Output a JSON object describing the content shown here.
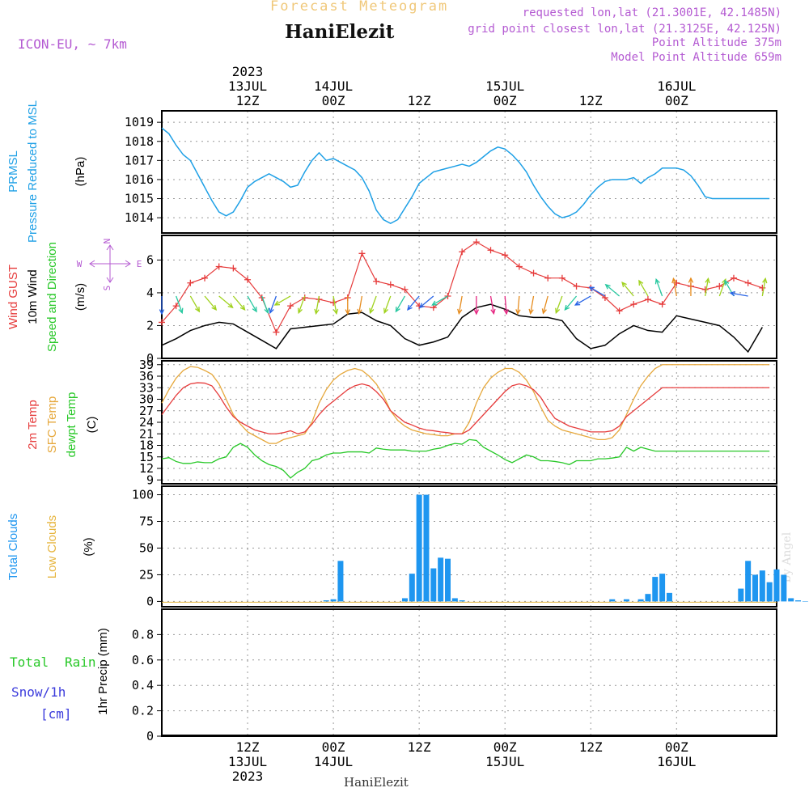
{
  "header": {
    "product_title": "Forecast Meteogram",
    "station": "HaniElezit",
    "model": "ICON-EU, ~ 7km",
    "requested": "requested lon,lat (21.3001E, 42.1485N)",
    "grid_point": "grid point closest lon,lat (21.3125E, 42.125N)",
    "point_altitude": "Point Altitude 375m",
    "model_altitude": "Model Point Altitude 659m",
    "footer_station": "HaniElezit",
    "watermark": "by Angel"
  },
  "time_axis": {
    "top_labels": [
      {
        "hour": 12,
        "lines": [
          "2023",
          "13JUL",
          "12Z"
        ]
      },
      {
        "hour": 24,
        "lines": [
          "14JUL",
          "00Z"
        ]
      },
      {
        "hour": 36,
        "lines": [
          "12Z"
        ]
      },
      {
        "hour": 48,
        "lines": [
          "15JUL",
          "00Z"
        ]
      },
      {
        "hour": 60,
        "lines": [
          "12Z"
        ]
      },
      {
        "hour": 72,
        "lines": [
          "16JUL",
          "00Z"
        ]
      }
    ],
    "bottom_labels": [
      {
        "hour": 12,
        "lines": [
          "12Z",
          "13JUL",
          "2023"
        ]
      },
      {
        "hour": 24,
        "lines": [
          "00Z",
          "14JUL"
        ]
      },
      {
        "hour": 36,
        "lines": [
          "12Z"
        ]
      },
      {
        "hour": 48,
        "lines": [
          "00Z",
          "15JUL"
        ]
      },
      {
        "hour": 60,
        "lines": [
          "12Z"
        ]
      },
      {
        "hour": 72,
        "lines": [
          "00Z",
          "16JUL"
        ]
      }
    ]
  },
  "panels": {
    "pressure": {
      "ylabel_lines": [
        "PRMSL",
        "Pressure Reduced to MSL"
      ],
      "unit": "(hPa)"
    },
    "wind": {
      "ylabel_lines": [
        "Wind GUST",
        "10m Wind",
        "Speed and Direction"
      ],
      "unit": "(m/s)",
      "compass": {
        "n": "N",
        "s": "S",
        "w": "W",
        "e": "E"
      }
    },
    "temp": {
      "ylabel_lines": [
        "2m Temp",
        "SFC Temp",
        "dewpt Temp"
      ],
      "unit": "(C)"
    },
    "clouds": {
      "ylabel_lines": [
        "Total Clouds",
        "Low Clouds"
      ],
      "unit": "(%)"
    },
    "precip": {
      "ylabel": "1hr Precip (mm)",
      "legend_total": "Total",
      "legend_rain": "Rain",
      "legend_snow": "Snow/1h",
      "legend_snow_unit": "[cm]"
    }
  },
  "colors": {
    "pressure": "#1ea0e6",
    "gust": "#e63c3c",
    "wind": "#000000",
    "temp2m": "#e63c3c",
    "sfc": "#e6a83c",
    "dewpt": "#28c828",
    "clouds": "#1e96f0",
    "lowclouds": "#e6b43c",
    "rain": "#28c828",
    "snow": "#3c3cdc",
    "header_purple": "#b45ad2",
    "title_tan": "#f0c87a"
  },
  "chart_data": [
    {
      "type": "line",
      "name": "PRMSL",
      "ylim": [
        1013.2,
        1019.6
      ],
      "yticks": [
        1014,
        1015,
        1016,
        1017,
        1018,
        1019
      ],
      "x": [
        0,
        1,
        2,
        3,
        4,
        5,
        6,
        7,
        8,
        9,
        10,
        11,
        12,
        13,
        14,
        15,
        16,
        17,
        18,
        19,
        20,
        21,
        22,
        23,
        24,
        25,
        26,
        27,
        28,
        29,
        30,
        31,
        32,
        33,
        34,
        35,
        36,
        37,
        38,
        39,
        40,
        41,
        42,
        43,
        44,
        45,
        46,
        47,
        48,
        49,
        50,
        51,
        52,
        53,
        54,
        55,
        56,
        57,
        58,
        59,
        60,
        61,
        62,
        63,
        64,
        65,
        66,
        67,
        68,
        69,
        70,
        71,
        72,
        73,
        74,
        75,
        76,
        77,
        78,
        79,
        80,
        81,
        82,
        83,
        84,
        85
      ],
      "values": [
        1018.7,
        1018.4,
        1017.8,
        1017.3,
        1017.0,
        1016.3,
        1015.6,
        1014.9,
        1014.3,
        1014.1,
        1014.3,
        1014.9,
        1015.6,
        1015.9,
        1016.1,
        1016.3,
        1016.1,
        1015.9,
        1015.6,
        1015.7,
        1016.4,
        1017.0,
        1017.4,
        1017.0,
        1017.1,
        1016.9,
        1016.7,
        1016.5,
        1016.1,
        1015.4,
        1014.4,
        1013.9,
        1013.7,
        1013.9,
        1014.5,
        1015.1,
        1015.8,
        1016.1,
        1016.4,
        1016.5,
        1016.6,
        1016.7,
        1016.8,
        1016.7,
        1016.9,
        1017.2,
        1017.5,
        1017.7,
        1017.6,
        1017.3,
        1016.9,
        1016.4,
        1015.7,
        1015.1,
        1014.6,
        1014.2,
        1014.0,
        1014.1,
        1014.3,
        1014.7,
        1015.2,
        1015.6,
        1015.9,
        1016.0,
        1016.0,
        1016.0,
        1016.1,
        1015.8,
        1016.1,
        1016.3,
        1016.6,
        1016.6,
        1016.6,
        1016.5,
        1016.2,
        1015.7,
        1015.1,
        1015.0,
        1015.0,
        1015.0,
        1015.0,
        1015.0,
        1015.0,
        1015.0,
        1015.0,
        1015.0
      ]
    },
    {
      "type": "line",
      "name": "Wind",
      "ylim": [
        0,
        7.5
      ],
      "yticks": [
        0,
        2,
        4,
        6
      ],
      "x": [
        0,
        2,
        4,
        6,
        8,
        10,
        12,
        14,
        16,
        18,
        20,
        22,
        24,
        26,
        28,
        30,
        32,
        34,
        36,
        38,
        40,
        42,
        44,
        46,
        48,
        50,
        52,
        54,
        56,
        58,
        60,
        62,
        64,
        66,
        68,
        70,
        72,
        74,
        76,
        78,
        80,
        82,
        84
      ],
      "gust": [
        2.2,
        3.2,
        4.6,
        4.9,
        5.6,
        5.5,
        4.8,
        3.7,
        1.6,
        3.2,
        3.7,
        3.6,
        3.4,
        3.7,
        6.4,
        4.7,
        4.5,
        4.2,
        3.2,
        3.1,
        3.8,
        6.5,
        7.1,
        6.6,
        6.3,
        5.6,
        5.2,
        4.9,
        4.9,
        4.4,
        4.3,
        3.7,
        2.9,
        3.3,
        3.6,
        3.3,
        4.6,
        4.4,
        4.2,
        4.4,
        4.9,
        4.6,
        4.3
      ],
      "speed": [
        0.8,
        1.2,
        1.7,
        2.0,
        2.2,
        2.1,
        1.6,
        1.1,
        0.6,
        1.8,
        1.9,
        2.0,
        2.1,
        2.7,
        2.8,
        2.3,
        2.0,
        1.2,
        0.8,
        1.0,
        1.3,
        2.5,
        3.1,
        3.3,
        3.0,
        2.6,
        2.5,
        2.5,
        2.3,
        1.2,
        0.6,
        0.8,
        1.5,
        2.0,
        1.7,
        1.6,
        2.6,
        2.4,
        2.2,
        2.0,
        1.3,
        0.4,
        1.9
      ],
      "dir_deg": [
        0,
        340,
        330,
        320,
        310,
        320,
        330,
        340,
        20,
        60,
        20,
        10,
        350,
        360,
        10,
        20,
        20,
        30,
        40,
        50,
        60,
        10,
        0,
        350,
        355,
        5,
        10,
        15,
        20,
        40,
        60,
        120,
        130,
        140,
        150,
        160,
        170,
        180,
        190,
        200,
        150,
        100,
        190
      ]
    },
    {
      "type": "line",
      "name": "Temperature",
      "ylim": [
        8,
        40
      ],
      "yticks": [
        9,
        12,
        15,
        18,
        21,
        24,
        27,
        30,
        33,
        36,
        39
      ],
      "x": [
        0,
        1,
        2,
        3,
        4,
        5,
        6,
        7,
        8,
        9,
        10,
        11,
        12,
        13,
        14,
        15,
        16,
        17,
        18,
        19,
        20,
        21,
        22,
        23,
        24,
        25,
        26,
        27,
        28,
        29,
        30,
        31,
        32,
        33,
        34,
        35,
        36,
        37,
        38,
        39,
        40,
        41,
        42,
        43,
        44,
        45,
        46,
        47,
        48,
        49,
        50,
        51,
        52,
        53,
        54,
        55,
        56,
        57,
        58,
        59,
        60,
        61,
        62,
        63,
        64,
        65,
        66,
        67,
        68,
        69,
        70,
        71,
        72,
        73,
        74,
        75,
        76,
        77,
        78,
        79,
        80,
        81,
        82,
        83,
        84,
        85
      ],
      "temp2m": [
        26.0,
        28.5,
        31.0,
        33.0,
        34.0,
        34.3,
        34.2,
        33.5,
        31.0,
        28.0,
        25.5,
        24.0,
        23.0,
        22.0,
        21.5,
        21.0,
        21.0,
        21.3,
        21.8,
        21.0,
        21.5,
        23.5,
        26.0,
        28.0,
        29.5,
        31.0,
        32.5,
        33.5,
        34.0,
        33.5,
        32.0,
        30.0,
        27.0,
        25.5,
        24.0,
        23.3,
        22.5,
        22.0,
        21.8,
        21.5,
        21.3,
        21.0,
        21.0,
        22.0,
        24.0,
        26.0,
        28.0,
        30.0,
        32.0,
        33.5,
        34.0,
        33.5,
        32.5,
        30.5,
        27.5,
        25.0,
        24.0,
        23.0,
        22.5,
        22.0,
        21.5,
        21.5,
        21.5,
        21.8,
        23.0,
        25.5,
        27.0,
        28.5,
        30.0,
        31.5,
        33.0,
        33.0,
        33.0,
        33.0,
        33.0,
        33.0,
        33.0,
        33.0,
        33.0,
        33.0,
        33.0,
        33.0,
        33.0,
        33.0,
        33.0,
        33.0
      ],
      "sfc": [
        29.0,
        32.5,
        35.5,
        37.5,
        38.5,
        38.3,
        37.5,
        36.5,
        34.0,
        30.0,
        26.0,
        23.5,
        21.5,
        20.5,
        19.5,
        18.5,
        18.5,
        19.5,
        20.0,
        20.5,
        21.0,
        24.0,
        29.0,
        32.5,
        35.0,
        36.5,
        37.5,
        38.0,
        37.5,
        36.0,
        34.0,
        31.0,
        27.0,
        24.5,
        23.0,
        22.0,
        21.5,
        21.0,
        20.8,
        20.5,
        20.5,
        21.0,
        21.0,
        24.0,
        29.0,
        33.0,
        35.5,
        37.0,
        38.0,
        38.0,
        37.0,
        35.0,
        32.0,
        28.0,
        24.5,
        23.0,
        22.0,
        21.5,
        21.0,
        20.5,
        20.0,
        19.5,
        19.5,
        20.0,
        22.0,
        26.0,
        30.0,
        33.5,
        36.0,
        38.0,
        39.0,
        39.0,
        39.0,
        39.0,
        39.0,
        39.0,
        39.0,
        39.0,
        39.0,
        39.0,
        39.0,
        39.0,
        39.0,
        39.0,
        39.0,
        39.0
      ],
      "dewpt": [
        14.5,
        14.8,
        13.8,
        13.3,
        13.3,
        13.7,
        13.5,
        13.5,
        14.5,
        15.0,
        17.5,
        18.5,
        17.5,
        15.5,
        14.0,
        13.0,
        12.5,
        11.5,
        9.5,
        11.0,
        12.0,
        14.0,
        14.5,
        15.5,
        16.0,
        16.0,
        16.3,
        16.3,
        16.3,
        16.0,
        17.3,
        17.0,
        16.8,
        16.8,
        16.8,
        16.5,
        16.5,
        16.5,
        17.0,
        17.3,
        18.0,
        18.5,
        18.3,
        19.5,
        19.3,
        17.5,
        16.5,
        15.5,
        14.3,
        13.5,
        14.5,
        15.5,
        15.0,
        14.0,
        14.0,
        13.8,
        13.5,
        13.0,
        14.0,
        14.0,
        14.0,
        14.5,
        14.5,
        14.7,
        15.0,
        17.5,
        16.5,
        17.5,
        17.0,
        16.5,
        16.5,
        16.5,
        16.5,
        16.5,
        16.5,
        16.5,
        16.5,
        16.5,
        16.5,
        16.5,
        16.5,
        16.5,
        16.5,
        16.5,
        16.5,
        16.5
      ]
    },
    {
      "type": "bar",
      "name": "Clouds",
      "ylim": [
        -5,
        108
      ],
      "yticks": [
        0,
        25,
        50,
        75,
        100
      ],
      "x": [
        23,
        24,
        25,
        34,
        35,
        36,
        37,
        38,
        39,
        40,
        41,
        42,
        63,
        65,
        67,
        68,
        69,
        70,
        71,
        81,
        82,
        83,
        84,
        85,
        86,
        87,
        88,
        89,
        90,
        91,
        92
      ],
      "values": [
        1,
        2,
        38,
        3,
        26,
        100,
        100,
        31,
        41,
        40,
        3,
        1,
        2,
        2,
        2,
        7,
        23,
        26,
        8,
        12,
        38,
        25,
        29,
        18,
        30,
        25,
        3,
        1,
        0,
        0,
        0
      ]
    },
    {
      "type": "bar",
      "name": "Precipitation",
      "ylim": [
        0,
        1.0
      ],
      "yticks": [
        0,
        0.2,
        0.4,
        0.6,
        0.8
      ],
      "x": [],
      "values": []
    }
  ]
}
